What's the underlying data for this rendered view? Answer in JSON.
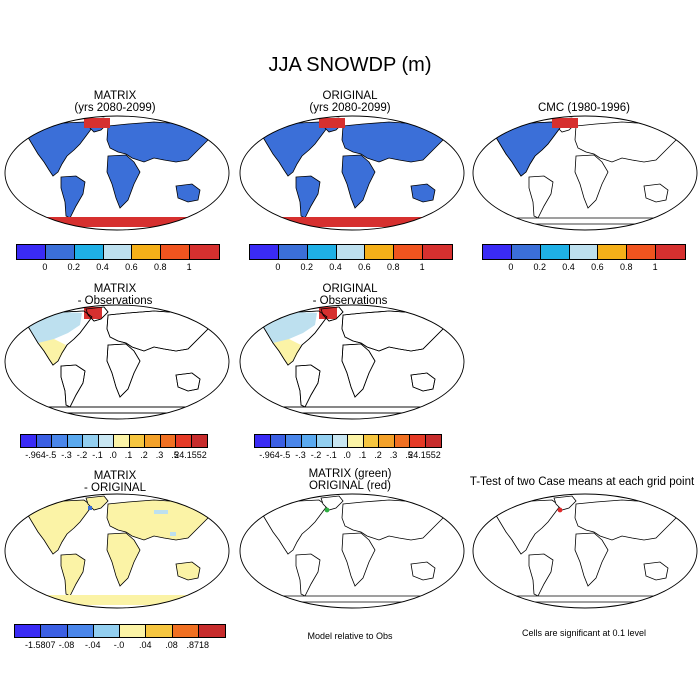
{
  "title": "JJA SNOWDP (m)",
  "panels": {
    "p1": {
      "title1": "MATRIX",
      "title2": "(yrs 2080-2099)"
    },
    "p2": {
      "title1": "ORIGINAL",
      "title2": "(yrs 2080-2099)"
    },
    "p3": {
      "title1": "CMC (1980-1996)"
    },
    "p4": {
      "title1": "MATRIX",
      "title2": "- Observations"
    },
    "p5": {
      "title1": "ORIGINAL",
      "title2": "- Observations"
    },
    "p7": {
      "title1": "MATRIX",
      "title2": "- ORIGINAL"
    },
    "p8": {
      "title1": "MATRIX (green)",
      "title2": "ORIGINAL (red)"
    },
    "p9": {
      "title1": "T-Test of two Case means at each grid point"
    }
  },
  "colorbars": {
    "abs": {
      "labels": [
        "0",
        "0.2",
        "0.4",
        "0.6",
        "0.8",
        "1"
      ],
      "colors": [
        "#3a2bf5",
        "#3b6fd8",
        "#1fb0e6",
        "#bde0ef",
        "#f5b019",
        "#f0541f",
        "#d6302f"
      ]
    },
    "diff": {
      "labels": [
        "-.964",
        "-.5",
        "-.3",
        "-.2",
        "-.1",
        ".0",
        ".1",
        ".2",
        ".3",
        ".5",
        "24.1552"
      ],
      "colors": [
        "#3a2bf5",
        "#3b5fe3",
        "#4a86ea",
        "#5aa9ef",
        "#93cff0",
        "#c8e6f2",
        "#fbf3a6",
        "#f6c640",
        "#f3a129",
        "#f07022",
        "#e53a26",
        "#c72c2c"
      ]
    },
    "diff2": {
      "labels": [
        "-1.5807",
        "-.08",
        "-.04",
        "-.0",
        ".04",
        ".08",
        ".8718"
      ],
      "colors": [
        "#3a2bf5",
        "#3b5fe3",
        "#4a86ea",
        "#93cff0",
        "#fbf3a6",
        "#f6c640",
        "#f07022",
        "#c72c2c"
      ]
    }
  },
  "footers": {
    "model_rel": "Model relative to Obs",
    "signif": "Cells are significant at 0.1 level"
  },
  "colors": {
    "snow_blue": "#3b6fd8",
    "red": "#d6302f",
    "light_blue": "#bde0ef",
    "pale_yellow": "#fbf3a6",
    "green_dot": "#2fb043",
    "red_dot": "#e0282a"
  }
}
